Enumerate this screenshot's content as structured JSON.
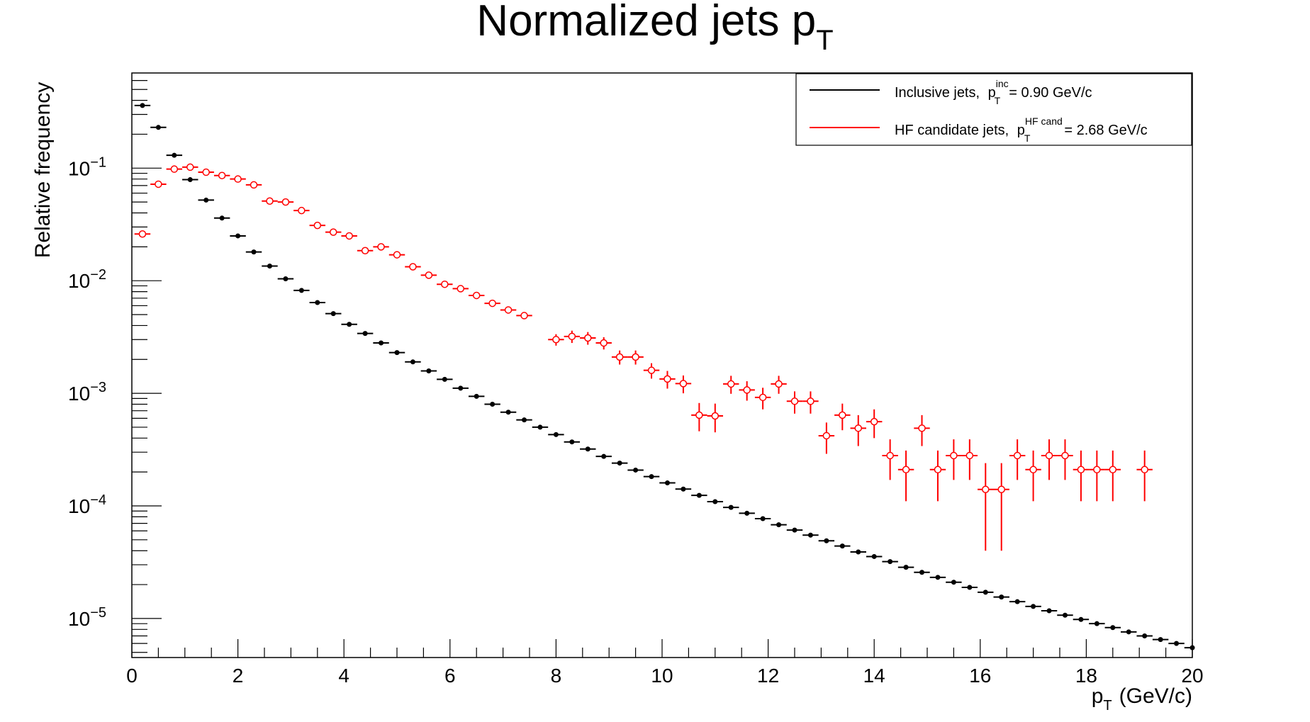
{
  "chart_data": {
    "type": "scatter",
    "title": "Normalized jets p",
    "title_subscript": "T",
    "xlabel": "p",
    "xlabel_subscript": "T",
    "xlabel_unit": "(GeV/c)",
    "ylabel": "Relative frequency",
    "xlim": [
      0,
      20
    ],
    "ylim": [
      4.5e-06,
      0.7
    ],
    "yscale": "log",
    "grid": false,
    "legend_position": "top-right",
    "x_ticks": [
      "0",
      "2",
      "4",
      "6",
      "8",
      "10",
      "12",
      "14",
      "16",
      "18",
      "20"
    ],
    "y_ticks": [
      {
        "base": "10",
        "exp": "−1",
        "value": 0.1
      },
      {
        "base": "10",
        "exp": "−2",
        "value": 0.01
      },
      {
        "base": "10",
        "exp": "−3",
        "value": 0.001
      },
      {
        "base": "10",
        "exp": "−4",
        "value": 0.0001
      },
      {
        "base": "10",
        "exp": "−5",
        "value": 1e-05
      }
    ],
    "series": [
      {
        "name": "Inclusive jets,",
        "legend_math": "p",
        "legend_sub": "T",
        "legend_sup": "inc",
        "legend_value": "= 0.90 GeV/c",
        "color": "#000000",
        "marker": "filled-circle",
        "x": [
          0.2,
          0.5,
          0.8,
          1.1,
          1.4,
          1.7,
          2.0,
          2.3,
          2.6,
          2.9,
          3.2,
          3.5,
          3.8,
          4.1,
          4.4,
          4.7,
          5.0,
          5.3,
          5.6,
          5.9,
          6.2,
          6.5,
          6.8,
          7.1,
          7.4,
          7.7,
          8.0,
          8.3,
          8.6,
          8.9,
          9.2,
          9.5,
          9.8,
          10.1,
          10.4,
          10.7,
          11.0,
          11.3,
          11.6,
          11.9,
          12.2,
          12.5,
          12.8,
          13.1,
          13.4,
          13.7,
          14.0,
          14.3,
          14.6,
          14.9,
          15.2,
          15.5,
          15.8,
          16.1,
          16.4,
          16.7,
          17.0,
          17.3,
          17.6,
          17.9,
          18.2,
          18.5,
          18.8,
          19.1,
          19.4,
          19.7,
          20.0
        ],
        "y": [
          0.36,
          0.23,
          0.13,
          0.079,
          0.052,
          0.036,
          0.025,
          0.018,
          0.0135,
          0.0104,
          0.0082,
          0.0064,
          0.0051,
          0.0041,
          0.0034,
          0.0028,
          0.0023,
          0.0019,
          0.00158,
          0.00133,
          0.00111,
          0.00094,
          0.0008,
          0.00068,
          0.00058,
          0.0005,
          0.00043,
          0.00037,
          0.00032,
          0.000275,
          0.00024,
          0.000208,
          0.000182,
          0.00016,
          0.000141,
          0.000124,
          0.000109,
          9.7e-05,
          8.6e-05,
          7.7e-05,
          6.8e-05,
          6.1e-05,
          5.5e-05,
          4.9e-05,
          4.4e-05,
          3.9e-05,
          3.55e-05,
          3.2e-05,
          2.85e-05,
          2.57e-05,
          2.32e-05,
          2.1e-05,
          1.89e-05,
          1.71e-05,
          1.55e-05,
          1.41e-05,
          1.28e-05,
          1.17e-05,
          1.07e-05,
          9.8e-06,
          9e-06,
          8.3e-06,
          7.6e-06,
          7e-06,
          6.5e-06,
          6e-06,
          5.5e-06
        ],
        "yerr": []
      },
      {
        "name": "HF candidate jets,",
        "legend_math": "p",
        "legend_sub": "T",
        "legend_sup": "HF cand",
        "legend_value": "= 2.68 GeV/c",
        "color": "#ff0000",
        "marker": "open-circle",
        "x": [
          0.2,
          0.5,
          0.8,
          1.1,
          1.4,
          1.7,
          2.0,
          2.3,
          2.6,
          2.9,
          3.2,
          3.5,
          3.8,
          4.1,
          4.4,
          4.7,
          5.0,
          5.3,
          5.6,
          5.9,
          6.2,
          6.5,
          6.8,
          7.1,
          7.4,
          7.7,
          8.0,
          8.3,
          8.6,
          8.9,
          9.2,
          9.5,
          9.8,
          10.1,
          10.4,
          10.7,
          11.0,
          11.3,
          11.6,
          11.9,
          12.2,
          12.5,
          12.8,
          13.1,
          13.4,
          13.7,
          14.0,
          14.3,
          14.6,
          14.9,
          15.2,
          15.5,
          15.8,
          16.1,
          16.4,
          16.7,
          17.0,
          17.3,
          17.6,
          17.9,
          18.2,
          18.5,
          18.8,
          19.1,
          19.4,
          19.7,
          20.0
        ],
        "y": [
          0.026,
          0.072,
          0.098,
          0.102,
          0.092,
          0.086,
          0.08,
          0.071,
          0.051,
          0.05,
          0.042,
          0.031,
          0.027,
          0.025,
          0.0185,
          0.02,
          0.017,
          0.0133,
          0.0112,
          0.0093,
          0.0085,
          0.0074,
          0.0063,
          0.0055,
          0.0049,
          null,
          0.003,
          0.0032,
          0.0031,
          0.0028,
          0.0021,
          0.0021,
          0.0016,
          0.00134,
          0.00122,
          0.00064,
          0.00063,
          0.00121,
          0.00107,
          0.00092,
          0.00121,
          0.00085,
          0.00085,
          0.00042,
          0.00064,
          0.00049,
          0.00056,
          0.00028,
          0.00021,
          0.00049,
          0.00021,
          0.00028,
          0.00028,
          0.00014,
          0.00014,
          0.00028,
          0.00021,
          0.00028,
          0.00028,
          0.00021,
          0.00021,
          0.00021,
          null,
          0.00021,
          null,
          null,
          null
        ],
        "yerr": [
          0.0007,
          0.0012,
          0.0014,
          0.0014,
          0.0013,
          0.0013,
          0.0012,
          0.0011,
          0.0009,
          0.0009,
          0.0008,
          0.0007,
          0.0006,
          0.0006,
          0.0005,
          0.0005,
          0.0005,
          0.0004,
          0.0004,
          0.0004,
          0.0003,
          0.0003,
          0.0003,
          0.0003,
          0.0003,
          null,
          0.00035,
          0.0004,
          0.0004,
          0.00035,
          0.0003,
          0.0003,
          0.00025,
          0.00024,
          0.00022,
          0.00018,
          0.00018,
          0.00022,
          0.00021,
          0.0002,
          0.00022,
          0.00019,
          0.00019,
          0.00013,
          0.00017,
          0.00015,
          0.00016,
          0.00011,
          0.0001,
          0.00015,
          0.0001,
          0.00011,
          0.00011,
          0.0001,
          0.0001,
          0.00011,
          0.0001,
          0.00011,
          0.00011,
          0.0001,
          0.0001,
          0.0001,
          null,
          0.0001,
          null,
          null,
          null
        ]
      }
    ]
  }
}
